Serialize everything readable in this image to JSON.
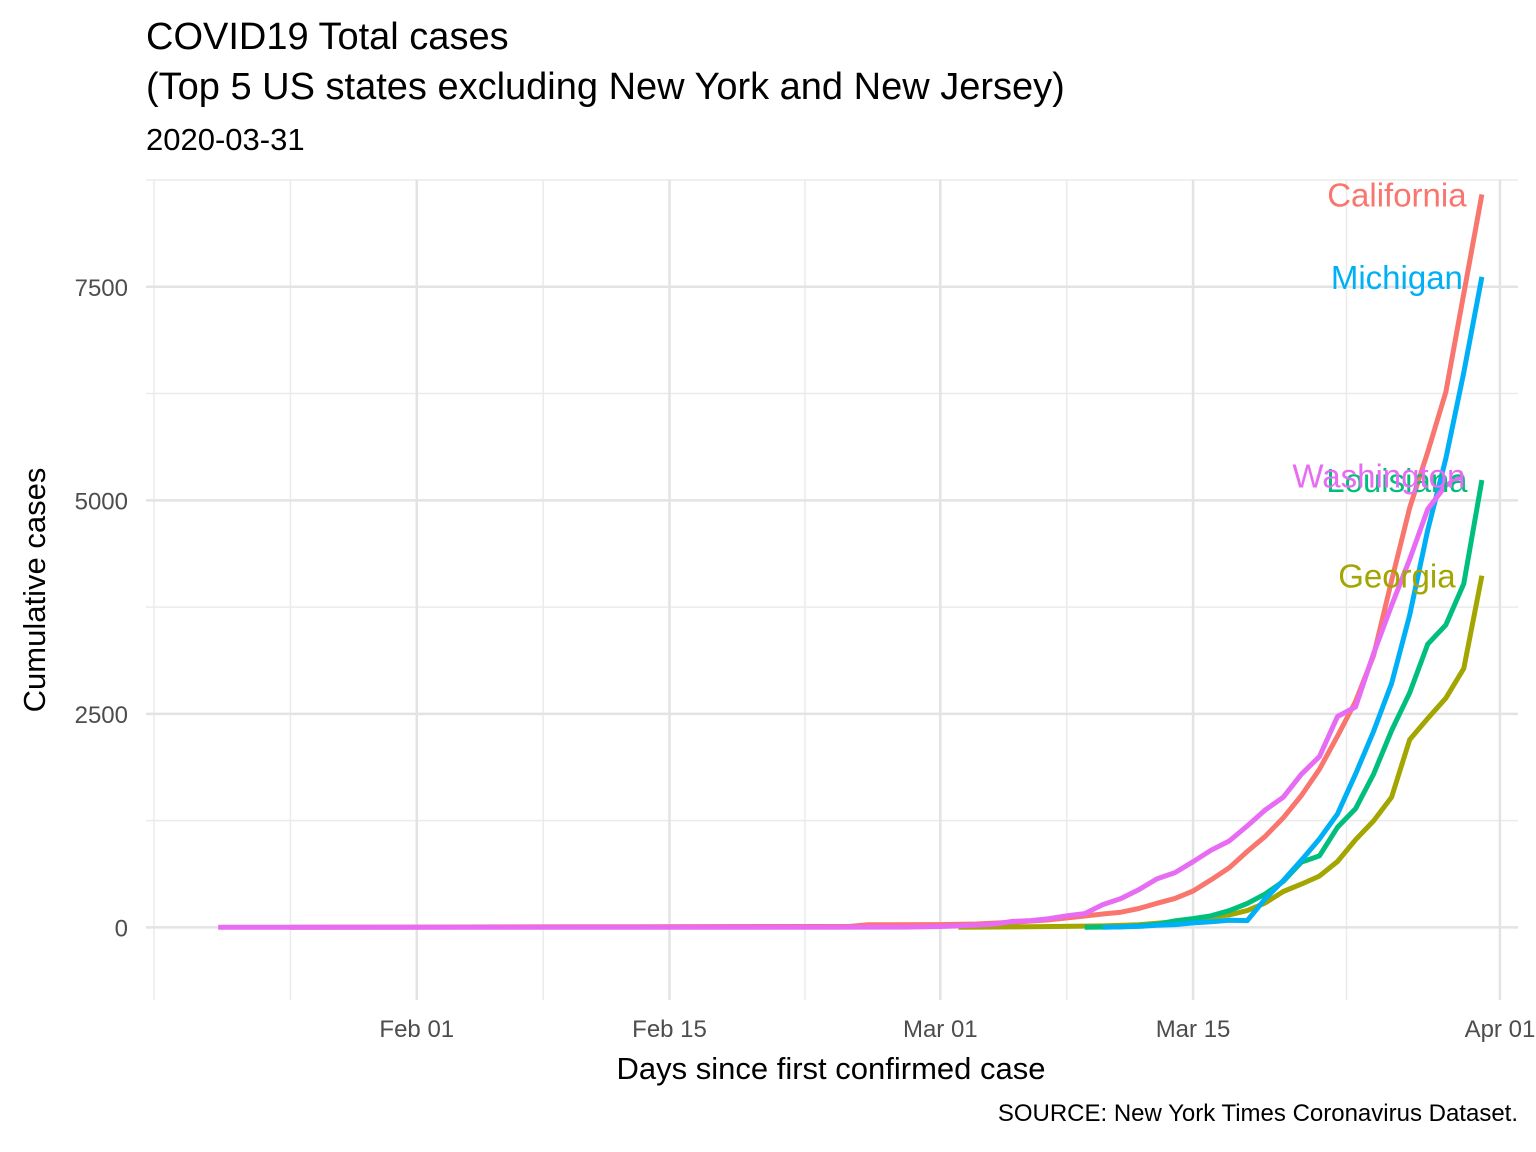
{
  "chart_data": {
    "type": "line",
    "title": "COVID19 Total cases",
    "title_line2": "(Top 5 US states excluding New York and New Jersey)",
    "subtitle": "2020-03-31",
    "caption": "SOURCE: New York Times Coronavirus Dataset.",
    "xlabel": "Days since first confirmed case",
    "ylabel": "Cumulative cases",
    "x_ticks": [
      {
        "date": "2020-02-01",
        "label": "Feb 01"
      },
      {
        "date": "2020-02-15",
        "label": "Feb 15"
      },
      {
        "date": "2020-03-01",
        "label": "Mar 01"
      },
      {
        "date": "2020-03-15",
        "label": "Mar 15"
      },
      {
        "date": "2020-04-01",
        "label": "Apr 01"
      }
    ],
    "y_ticks": [
      0,
      2500,
      5000,
      7500
    ],
    "xlim": [
      "2020-01-17",
      "2020-04-02"
    ],
    "ylim": [
      -850,
      8750
    ],
    "grid": true,
    "legend": "direct labels at line ends",
    "series": [
      {
        "name": "California",
        "color": "#F8766D",
        "points": [
          [
            "2020-01-25",
            1
          ],
          [
            "2020-02-01",
            3
          ],
          [
            "2020-02-10",
            7
          ],
          [
            "2020-02-20",
            10
          ],
          [
            "2020-02-25",
            12
          ],
          [
            "2020-02-26",
            30
          ],
          [
            "2020-03-01",
            33
          ],
          [
            "2020-03-03",
            40
          ],
          [
            "2020-03-05",
            60
          ],
          [
            "2020-03-07",
            88
          ],
          [
            "2020-03-09",
            133
          ],
          [
            "2020-03-10",
            157
          ],
          [
            "2020-03-11",
            178
          ],
          [
            "2020-03-12",
            221
          ],
          [
            "2020-03-13",
            282
          ],
          [
            "2020-03-14",
            340
          ],
          [
            "2020-03-15",
            426
          ],
          [
            "2020-03-16",
            557
          ],
          [
            "2020-03-17",
            698
          ],
          [
            "2020-03-18",
            889
          ],
          [
            "2020-03-19",
            1067
          ],
          [
            "2020-03-20",
            1283
          ],
          [
            "2020-03-21",
            1544
          ],
          [
            "2020-03-22",
            1851
          ],
          [
            "2020-03-23",
            2240
          ],
          [
            "2020-03-24",
            2644
          ],
          [
            "2020-03-25",
            3183
          ],
          [
            "2020-03-26",
            4060
          ],
          [
            "2020-03-27",
            4914
          ],
          [
            "2020-03-28",
            5565
          ],
          [
            "2020-03-29",
            6266
          ],
          [
            "2020-03-30",
            7421
          ],
          [
            "2020-03-31",
            8582
          ]
        ]
      },
      {
        "name": "Georgia",
        "color": "#A3A500",
        "points": [
          [
            "2020-03-02",
            2
          ],
          [
            "2020-03-05",
            6
          ],
          [
            "2020-03-08",
            12
          ],
          [
            "2020-03-10",
            17
          ],
          [
            "2020-03-12",
            31
          ],
          [
            "2020-03-14",
            66
          ],
          [
            "2020-03-16",
            121
          ],
          [
            "2020-03-17",
            146
          ],
          [
            "2020-03-18",
            197
          ],
          [
            "2020-03-19",
            287
          ],
          [
            "2020-03-20",
            420
          ],
          [
            "2020-03-21",
            507
          ],
          [
            "2020-03-22",
            600
          ],
          [
            "2020-03-23",
            772
          ],
          [
            "2020-03-24",
            1026
          ],
          [
            "2020-03-25",
            1247
          ],
          [
            "2020-03-26",
            1525
          ],
          [
            "2020-03-27",
            2198
          ],
          [
            "2020-03-28",
            2446
          ],
          [
            "2020-03-29",
            2683
          ],
          [
            "2020-03-30",
            3032
          ],
          [
            "2020-03-31",
            4117
          ]
        ]
      },
      {
        "name": "Louisiana",
        "color": "#00BF7D",
        "points": [
          [
            "2020-03-09",
            1
          ],
          [
            "2020-03-11",
            6
          ],
          [
            "2020-03-12",
            19
          ],
          [
            "2020-03-13",
            36
          ],
          [
            "2020-03-14",
            77
          ],
          [
            "2020-03-15",
            103
          ],
          [
            "2020-03-16",
            136
          ],
          [
            "2020-03-17",
            196
          ],
          [
            "2020-03-18",
            280
          ],
          [
            "2020-03-19",
            392
          ],
          [
            "2020-03-20",
            538
          ],
          [
            "2020-03-21",
            763
          ],
          [
            "2020-03-22",
            837
          ],
          [
            "2020-03-23",
            1172
          ],
          [
            "2020-03-24",
            1388
          ],
          [
            "2020-03-25",
            1795
          ],
          [
            "2020-03-26",
            2305
          ],
          [
            "2020-03-27",
            2746
          ],
          [
            "2020-03-28",
            3315
          ],
          [
            "2020-03-29",
            3540
          ],
          [
            "2020-03-30",
            4025
          ],
          [
            "2020-03-31",
            5237
          ]
        ]
      },
      {
        "name": "Michigan",
        "color": "#00B0F6",
        "points": [
          [
            "2020-03-10",
            2
          ],
          [
            "2020-03-12",
            12
          ],
          [
            "2020-03-13",
            25
          ],
          [
            "2020-03-14",
            33
          ],
          [
            "2020-03-15",
            53
          ],
          [
            "2020-03-16",
            65
          ],
          [
            "2020-03-17",
            83
          ],
          [
            "2020-03-18",
            80
          ],
          [
            "2020-03-19",
            336
          ],
          [
            "2020-03-20",
            549
          ],
          [
            "2020-03-21",
            787
          ],
          [
            "2020-03-22",
            1035
          ],
          [
            "2020-03-23",
            1329
          ],
          [
            "2020-03-24",
            1793
          ],
          [
            "2020-03-25",
            2296
          ],
          [
            "2020-03-26",
            2856
          ],
          [
            "2020-03-27",
            3657
          ],
          [
            "2020-03-28",
            4650
          ],
          [
            "2020-03-29",
            5486
          ],
          [
            "2020-03-30",
            6498
          ],
          [
            "2020-03-31",
            7615
          ]
        ]
      },
      {
        "name": "Washington",
        "color": "#E76BF3",
        "points": [
          [
            "2020-01-21",
            1
          ],
          [
            "2020-01-25",
            1
          ],
          [
            "2020-02-01",
            1
          ],
          [
            "2020-02-10",
            1
          ],
          [
            "2020-02-20",
            1
          ],
          [
            "2020-02-28",
            4
          ],
          [
            "2020-03-01",
            11
          ],
          [
            "2020-03-02",
            18
          ],
          [
            "2020-03-03",
            27
          ],
          [
            "2020-03-04",
            39
          ],
          [
            "2020-03-05",
            70
          ],
          [
            "2020-03-06",
            79
          ],
          [
            "2020-03-07",
            102
          ],
          [
            "2020-03-08",
            136
          ],
          [
            "2020-03-09",
            162
          ],
          [
            "2020-03-10",
            267
          ],
          [
            "2020-03-11",
            337
          ],
          [
            "2020-03-12",
            442
          ],
          [
            "2020-03-13",
            568
          ],
          [
            "2020-03-14",
            642
          ],
          [
            "2020-03-15",
            769
          ],
          [
            "2020-03-16",
            904
          ],
          [
            "2020-03-17",
            1012
          ],
          [
            "2020-03-18",
            1187
          ],
          [
            "2020-03-19",
            1376
          ],
          [
            "2020-03-20",
            1524
          ],
          [
            "2020-03-21",
            1793
          ],
          [
            "2020-03-22",
            2000
          ],
          [
            "2020-03-23",
            2469
          ],
          [
            "2020-03-24",
            2580
          ],
          [
            "2020-03-25",
            3207
          ],
          [
            "2020-03-26",
            3770
          ],
          [
            "2020-03-27",
            4310
          ],
          [
            "2020-03-28",
            4896
          ],
          [
            "2020-03-29",
            5174
          ],
          [
            "2020-03-30",
            5293
          ]
        ]
      }
    ]
  }
}
